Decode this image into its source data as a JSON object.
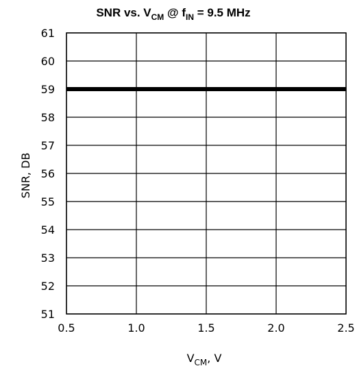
{
  "chart_data": {
    "type": "line",
    "title": {
      "main": "SNR vs. V",
      "sub1": "CM",
      "mid": " @ f",
      "sub2": "IN",
      "tail": " = 9.5 MHz"
    },
    "xlabel": {
      "main": "V",
      "sub": "CM",
      "tail": ", V"
    },
    "ylabel": "SNR, DB",
    "xlim": [
      0.5,
      2.5
    ],
    "ylim": [
      51,
      61
    ],
    "x_ticks": [
      {
        "v": 0.5,
        "label": "0.5"
      },
      {
        "v": 1.0,
        "label": "1.0"
      },
      {
        "v": 1.5,
        "label": "1.5"
      },
      {
        "v": 2.0,
        "label": "2.0"
      },
      {
        "v": 2.5,
        "label": "2.5"
      }
    ],
    "y_ticks": [
      {
        "v": 51,
        "label": "51"
      },
      {
        "v": 52,
        "label": "52"
      },
      {
        "v": 53,
        "label": "53"
      },
      {
        "v": 54,
        "label": "54"
      },
      {
        "v": 55,
        "label": "55"
      },
      {
        "v": 56,
        "label": "56"
      },
      {
        "v": 57,
        "label": "57"
      },
      {
        "v": 58,
        "label": "58"
      },
      {
        "v": 59,
        "label": "59"
      },
      {
        "v": 60,
        "label": "60"
      },
      {
        "v": 61,
        "label": "61"
      }
    ],
    "grid": true,
    "legend": "none",
    "series": [
      {
        "x": [
          0.5,
          1.0,
          1.5,
          2.0,
          2.5
        ],
        "y": [
          59,
          59,
          59,
          59,
          59
        ],
        "color": "#000000"
      }
    ]
  }
}
